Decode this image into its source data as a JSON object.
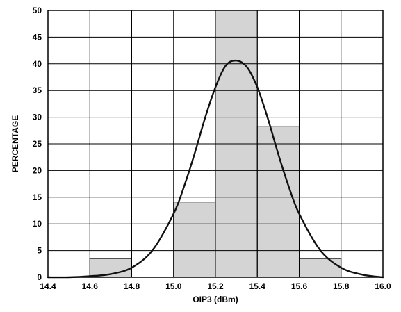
{
  "chart_data": {
    "type": "bar",
    "title": "",
    "xlabel": "OIP3 (dBm)",
    "ylabel": "PERCENTAGE",
    "xlim": [
      14.4,
      16.0
    ],
    "ylim": [
      0,
      50
    ],
    "x_ticks": [
      "14.4",
      "14.6",
      "14.8",
      "15.0",
      "15.2",
      "15.4",
      "15.6",
      "15.8",
      "16.0"
    ],
    "y_ticks": [
      "0",
      "5",
      "10",
      "15",
      "20",
      "25",
      "30",
      "35",
      "40",
      "45",
      "50"
    ],
    "grid": true,
    "legend": "none",
    "bar_color": "#d4d4d4",
    "bins": [
      {
        "x0": 14.6,
        "x1": 14.8,
        "value": 3.5
      },
      {
        "x0": 15.0,
        "x1": 15.2,
        "value": 14.1
      },
      {
        "x0": 15.2,
        "x1": 15.4,
        "value": 50
      },
      {
        "x0": 15.4,
        "x1": 15.6,
        "value": 28.3
      },
      {
        "x0": 15.6,
        "x1": 15.8,
        "value": 3.5
      }
    ],
    "series": [
      {
        "type": "line",
        "x": [
          14.4,
          14.5,
          14.6,
          14.7,
          14.8,
          14.9,
          15.0,
          15.05,
          15.1,
          15.15,
          15.2,
          15.25,
          15.3,
          15.35,
          15.4,
          15.45,
          15.5,
          15.55,
          15.6,
          15.7,
          15.8,
          15.9,
          16.0
        ],
        "values": [
          0.0,
          0.0,
          0.2,
          0.6,
          1.8,
          5.1,
          11.9,
          17.0,
          23.1,
          29.8,
          35.6,
          39.7,
          40.6,
          39.4,
          35.6,
          29.8,
          23.1,
          17.0,
          11.9,
          5.1,
          1.8,
          0.5,
          0.0
        ]
      }
    ]
  }
}
